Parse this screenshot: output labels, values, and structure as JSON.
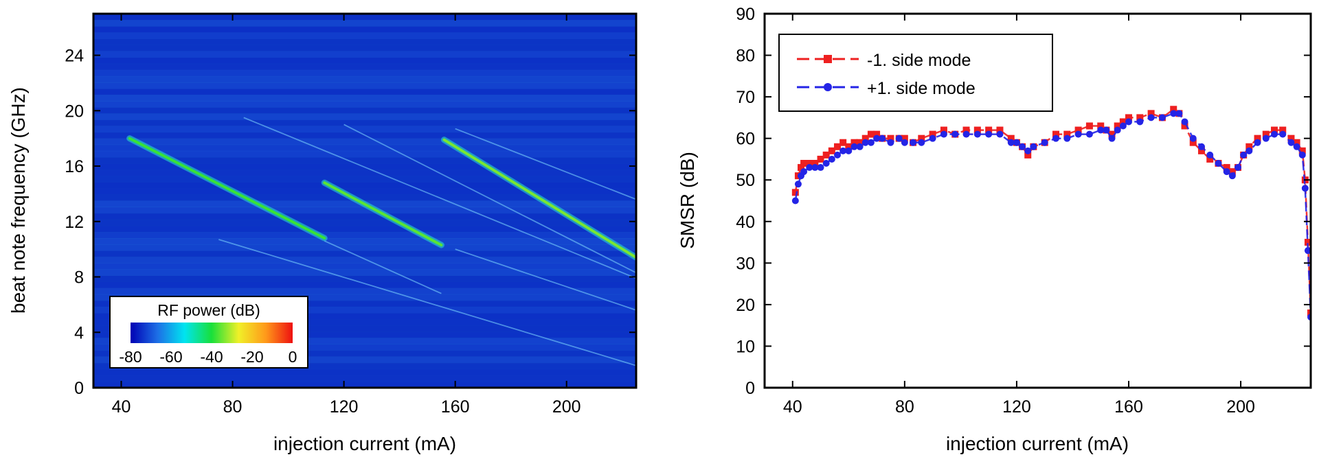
{
  "chart_data": [
    {
      "type": "heatmap",
      "xlabel": "injection current (mA)",
      "ylabel": "beat note frequency (GHz)",
      "xlim": [
        30,
        225
      ],
      "ylim": [
        0,
        27
      ],
      "xticks": [
        40,
        80,
        120,
        160,
        200
      ],
      "yticks": [
        0,
        4,
        8,
        12,
        16,
        20,
        24
      ],
      "background_level_dB": -75,
      "colorbar": {
        "title": "RF power (dB)",
        "ticks": [
          -80,
          -60,
          -40,
          -20,
          0
        ],
        "colors": [
          "#0000b4",
          "#1d6fe6",
          "#00e4f0",
          "#18e03a",
          "#f0f028",
          "#ff9a1a",
          "#ee1010"
        ]
      },
      "main_branches": [
        {
          "x": [
            43,
            113
          ],
          "y": [
            18.0,
            10.8
          ],
          "level_dB": -38
        },
        {
          "x": [
            113,
            155
          ],
          "y": [
            14.8,
            10.3
          ],
          "level_dB": -36
        },
        {
          "x": [
            156,
            225
          ],
          "y": [
            17.9,
            9.4
          ],
          "level_dB": -34
        }
      ],
      "faint_branches": [
        {
          "x": [
            84,
            225
          ],
          "y": [
            19.5,
            7.9
          ]
        },
        {
          "x": [
            120,
            225
          ],
          "y": [
            19.0,
            8.3
          ]
        },
        {
          "x": [
            160,
            225
          ],
          "y": [
            18.7,
            13.6
          ]
        },
        {
          "x": [
            75,
            225
          ],
          "y": [
            10.7,
            1.6
          ]
        },
        {
          "x": [
            113,
            155
          ],
          "y": [
            10.6,
            6.8
          ]
        },
        {
          "x": [
            160,
            225
          ],
          "y": [
            10.0,
            5.6
          ]
        }
      ],
      "legend_position": "lower-left"
    },
    {
      "type": "scatter",
      "xlabel": "injection current (mA)",
      "ylabel": "SMSR (dB)",
      "xlim": [
        30,
        225
      ],
      "ylim": [
        0,
        90
      ],
      "xticks": [
        40,
        80,
        120,
        160,
        200
      ],
      "yticks": [
        0,
        10,
        20,
        30,
        40,
        50,
        60,
        70,
        80,
        90
      ],
      "legend_position": "top-left",
      "series": [
        {
          "name": "-1. side mode",
          "color": "#ee2020",
          "marker": "square",
          "x": [
            41,
            42,
            43,
            44,
            46,
            48,
            50,
            52,
            54,
            56,
            58,
            60,
            62,
            64,
            66,
            68,
            70,
            72,
            75,
            78,
            80,
            83,
            86,
            90,
            94,
            98,
            102,
            106,
            110,
            114,
            118,
            120,
            122,
            124,
            126,
            130,
            134,
            138,
            142,
            146,
            150,
            152,
            154,
            156,
            158,
            160,
            164,
            168,
            172,
            176,
            178,
            180,
            183,
            186,
            189,
            192,
            195,
            197,
            199,
            201,
            203,
            206,
            209,
            212,
            215,
            218,
            220,
            222,
            223,
            224,
            225
          ],
          "values": [
            47,
            51,
            53,
            54,
            54,
            54,
            55,
            56,
            57,
            58,
            59,
            58,
            59,
            59,
            60,
            61,
            61,
            60,
            60,
            60,
            60,
            59,
            60,
            61,
            62,
            61,
            62,
            62,
            62,
            62,
            60,
            59,
            58,
            56,
            58,
            59,
            61,
            61,
            62,
            63,
            63,
            62,
            61,
            63,
            64,
            65,
            65,
            66,
            65,
            67,
            66,
            63,
            59,
            57,
            55,
            54,
            53,
            52,
            53,
            56,
            58,
            60,
            61,
            62,
            62,
            60,
            59,
            57,
            50,
            35,
            18
          ]
        },
        {
          "name": "+1. side mode",
          "color": "#2424e6",
          "marker": "circle",
          "x": [
            41,
            42,
            43,
            44,
            46,
            48,
            50,
            52,
            54,
            56,
            58,
            60,
            62,
            64,
            66,
            68,
            70,
            72,
            75,
            78,
            80,
            83,
            86,
            90,
            94,
            98,
            102,
            106,
            110,
            114,
            118,
            120,
            122,
            124,
            126,
            130,
            134,
            138,
            142,
            146,
            150,
            152,
            154,
            156,
            158,
            160,
            164,
            168,
            172,
            176,
            178,
            180,
            183,
            186,
            189,
            192,
            195,
            197,
            199,
            201,
            203,
            206,
            209,
            212,
            215,
            218,
            220,
            222,
            223,
            224,
            225
          ],
          "values": [
            45,
            49,
            51,
            52,
            53,
            53,
            53,
            54,
            55,
            56,
            57,
            57,
            58,
            58,
            59,
            59,
            60,
            60,
            59,
            60,
            59,
            59,
            59,
            60,
            61,
            61,
            61,
            61,
            61,
            61,
            59,
            59,
            58,
            57,
            58,
            59,
            60,
            60,
            61,
            61,
            62,
            62,
            60,
            62,
            63,
            64,
            64,
            65,
            65,
            66,
            66,
            64,
            60,
            58,
            56,
            54,
            52,
            51,
            53,
            56,
            57,
            59,
            60,
            61,
            61,
            59,
            58,
            56,
            48,
            33,
            17
          ]
        }
      ]
    }
  ]
}
